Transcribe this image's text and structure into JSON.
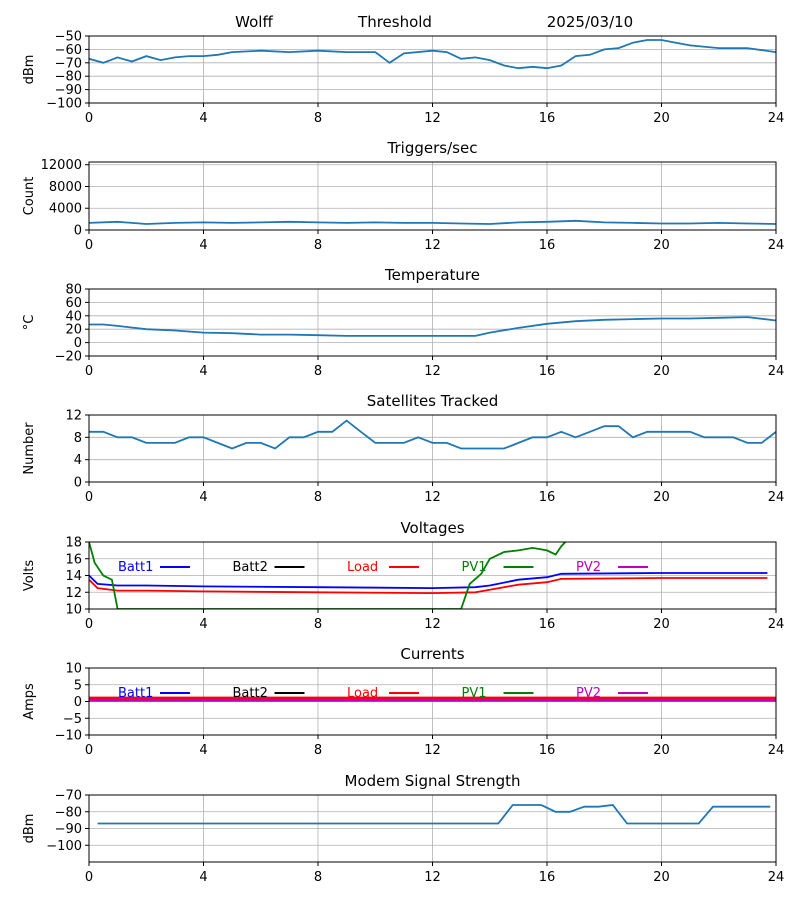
{
  "header": {
    "station": "Wolff",
    "mode": "Threshold",
    "date": "2025/03/10"
  },
  "colors": {
    "series": "#1f77b4",
    "grid": "#b0b0b0",
    "batt1": "#0000ff",
    "batt2": "#000000",
    "load": "#ff0000",
    "pv1": "#008000",
    "pv2": "#bf00bf",
    "modem": "#0000ff"
  },
  "chart_data": [
    {
      "type": "line",
      "title": "",
      "ylabel": "dBm",
      "xlim": [
        0,
        24
      ],
      "xticks": [
        0,
        4,
        8,
        12,
        16,
        20,
        24
      ],
      "ylim": [
        -100,
        -50
      ],
      "yticks": [
        -100,
        -90,
        -80,
        -70,
        -60,
        -50
      ],
      "grid": true,
      "series": [
        {
          "x": [
            0,
            0.5,
            1,
            1.5,
            2,
            2.5,
            3,
            3.5,
            4,
            4.5,
            5,
            6,
            7,
            8,
            9,
            10,
            10.5,
            11,
            12,
            12.5,
            13,
            13.5,
            14,
            14.5,
            15,
            15.5,
            16,
            16.5,
            17,
            17.5,
            18,
            18.5,
            19,
            19.5,
            20,
            20.5,
            21,
            22,
            23,
            24
          ],
          "y": [
            -67,
            -70,
            -66,
            -69,
            -65,
            -68,
            -66,
            -65,
            -65,
            -64,
            -62,
            -61,
            -62,
            -61,
            -62,
            -62,
            -70,
            -63,
            -61,
            -62,
            -67,
            -66,
            -68,
            -72,
            -74,
            -73,
            -74,
            -72,
            -65,
            -64,
            -60,
            -59,
            -55,
            -53,
            -53,
            -55,
            -57,
            -59,
            -59,
            -62
          ]
        }
      ]
    },
    {
      "type": "line",
      "title": "Triggers/sec",
      "ylabel": "Count",
      "xlim": [
        0,
        24
      ],
      "xticks": [
        0,
        4,
        8,
        12,
        16,
        20,
        24
      ],
      "ylim": [
        0,
        12000
      ],
      "yticks": [
        0,
        4000,
        8000,
        12000
      ],
      "grid": true,
      "series": [
        {
          "x": [
            0,
            1,
            2,
            3,
            4,
            5,
            6,
            7,
            8,
            9,
            10,
            11,
            12,
            13,
            14,
            15,
            16,
            17,
            18,
            19,
            20,
            21,
            22,
            23,
            24
          ],
          "y": [
            1300,
            1500,
            1100,
            1300,
            1400,
            1300,
            1400,
            1500,
            1400,
            1300,
            1400,
            1300,
            1300,
            1200,
            1100,
            1400,
            1500,
            1700,
            1400,
            1300,
            1200,
            1200,
            1300,
            1200,
            1100
          ]
        }
      ]
    },
    {
      "type": "line",
      "title": "Temperature",
      "ylabel": "°C",
      "xlim": [
        0,
        24
      ],
      "xticks": [
        0,
        4,
        8,
        12,
        16,
        20,
        24
      ],
      "ylim": [
        -20,
        80
      ],
      "yticks": [
        -20,
        0,
        20,
        40,
        60,
        80
      ],
      "grid": true,
      "series": [
        {
          "x": [
            0,
            0.5,
            1,
            2,
            3,
            4,
            5,
            6,
            7,
            8,
            9,
            10,
            11,
            12,
            13,
            13.5,
            14,
            15,
            16,
            17,
            18,
            19,
            20,
            21,
            22,
            23,
            24
          ],
          "y": [
            27,
            27,
            25,
            20,
            18,
            15,
            14,
            12,
            12,
            11,
            10,
            10,
            10,
            10,
            10,
            10,
            15,
            22,
            28,
            32,
            34,
            35,
            36,
            36,
            37,
            38,
            33
          ]
        }
      ]
    },
    {
      "type": "line",
      "title": "Satellites Tracked",
      "ylabel": "Number",
      "xlim": [
        0,
        24
      ],
      "xticks": [
        0,
        4,
        8,
        12,
        16,
        20,
        24
      ],
      "ylim": [
        0,
        12
      ],
      "yticks": [
        0,
        4,
        8,
        12
      ],
      "grid": true,
      "series": [
        {
          "x": [
            0,
            0.5,
            1,
            1.5,
            2,
            2.5,
            3,
            3.5,
            4,
            4.5,
            5,
            5.5,
            6,
            6.5,
            7,
            7.5,
            8,
            8.5,
            9,
            9.5,
            10,
            10.5,
            11,
            11.5,
            12,
            12.5,
            13,
            13.5,
            14,
            14.5,
            15,
            15.5,
            16,
            16.5,
            17,
            17.5,
            18,
            18.5,
            19,
            19.5,
            20,
            20.5,
            21,
            21.5,
            22,
            22.5,
            23,
            23.5,
            24
          ],
          "y": [
            9,
            9,
            8,
            8,
            7,
            7,
            7,
            8,
            8,
            7,
            6,
            7,
            7,
            6,
            8,
            8,
            9,
            9,
            11,
            9,
            7,
            7,
            7,
            8,
            7,
            7,
            6,
            6,
            6,
            6,
            7,
            8,
            8,
            9,
            8,
            9,
            10,
            10,
            8,
            9,
            9,
            9,
            9,
            8,
            8,
            8,
            7,
            7,
            9
          ]
        }
      ]
    },
    {
      "type": "line",
      "title": "Voltages",
      "ylabel": "Volts",
      "xlim": [
        0,
        24
      ],
      "xticks": [
        0,
        4,
        8,
        12,
        16,
        20,
        24
      ],
      "ylim": [
        10,
        18
      ],
      "yticks": [
        10,
        12,
        14,
        16,
        18
      ],
      "grid": true,
      "legend": "top",
      "legend_labels": [
        "Batt1",
        "Batt2",
        "Load",
        "PV1",
        "PV2"
      ],
      "series": [
        {
          "name": "Batt1",
          "x": [
            0,
            0.3,
            1,
            2,
            4,
            8,
            12,
            13.5,
            14,
            15,
            16,
            16.5,
            20,
            23.7
          ],
          "y": [
            14,
            13,
            12.8,
            12.8,
            12.7,
            12.6,
            12.5,
            12.6,
            12.8,
            13.5,
            13.8,
            14.2,
            14.3,
            14.3
          ]
        },
        {
          "name": "Load",
          "x": [
            0,
            0.3,
            1,
            2,
            4,
            8,
            12,
            13.5,
            14,
            15,
            16,
            16.5,
            20,
            23.7
          ],
          "y": [
            13.5,
            12.5,
            12.2,
            12.2,
            12.1,
            12,
            11.9,
            12,
            12.3,
            12.9,
            13.2,
            13.6,
            13.7,
            13.7
          ]
        },
        {
          "name": "PV1",
          "x": [
            0,
            0.2,
            0.5,
            0.8,
            1,
            13,
            13.3,
            13.7,
            14,
            14.5,
            15,
            15.5,
            16,
            16.3,
            16.5,
            16.7
          ],
          "y": [
            18,
            15.5,
            14,
            13.5,
            10,
            10,
            13,
            14.2,
            16,
            16.8,
            17,
            17.3,
            17,
            16.5,
            17.5,
            18.2
          ]
        }
      ]
    },
    {
      "type": "line",
      "title": "Currents",
      "ylabel": "Amps",
      "xlim": [
        0,
        24
      ],
      "xticks": [
        0,
        4,
        8,
        12,
        16,
        20,
        24
      ],
      "ylim": [
        -10,
        10
      ],
      "yticks": [
        -10,
        -5,
        0,
        5,
        10
      ],
      "grid": true,
      "legend": "top",
      "legend_labels": [
        "Batt1",
        "Batt2",
        "Load",
        "PV1",
        "PV2"
      ],
      "series": [
        {
          "name": "Load",
          "x": [
            0,
            24
          ],
          "y": [
            1,
            1
          ]
        },
        {
          "name": "PV2",
          "x": [
            0,
            24
          ],
          "y": [
            0.4,
            0.4
          ]
        }
      ]
    },
    {
      "type": "line",
      "title": "Modem Signal Strength",
      "ylabel": "dBm",
      "xlim": [
        0,
        24
      ],
      "xticks": [
        0,
        4,
        8,
        12,
        16,
        20,
        24
      ],
      "ylim": [
        -110,
        -70
      ],
      "yticks": [
        -100,
        -90,
        -80,
        -70
      ],
      "grid": true,
      "series": [
        {
          "x": [
            0.3,
            14.3,
            14.8,
            15.8,
            16.3,
            16.8,
            17.3,
            17.8,
            18.3,
            18.8,
            21.3,
            21.8,
            23.8
          ],
          "y": [
            -87,
            -87,
            -76,
            -76,
            -80,
            -80,
            -77,
            -77,
            -76,
            -87,
            -87,
            -77,
            -77
          ]
        }
      ]
    }
  ]
}
